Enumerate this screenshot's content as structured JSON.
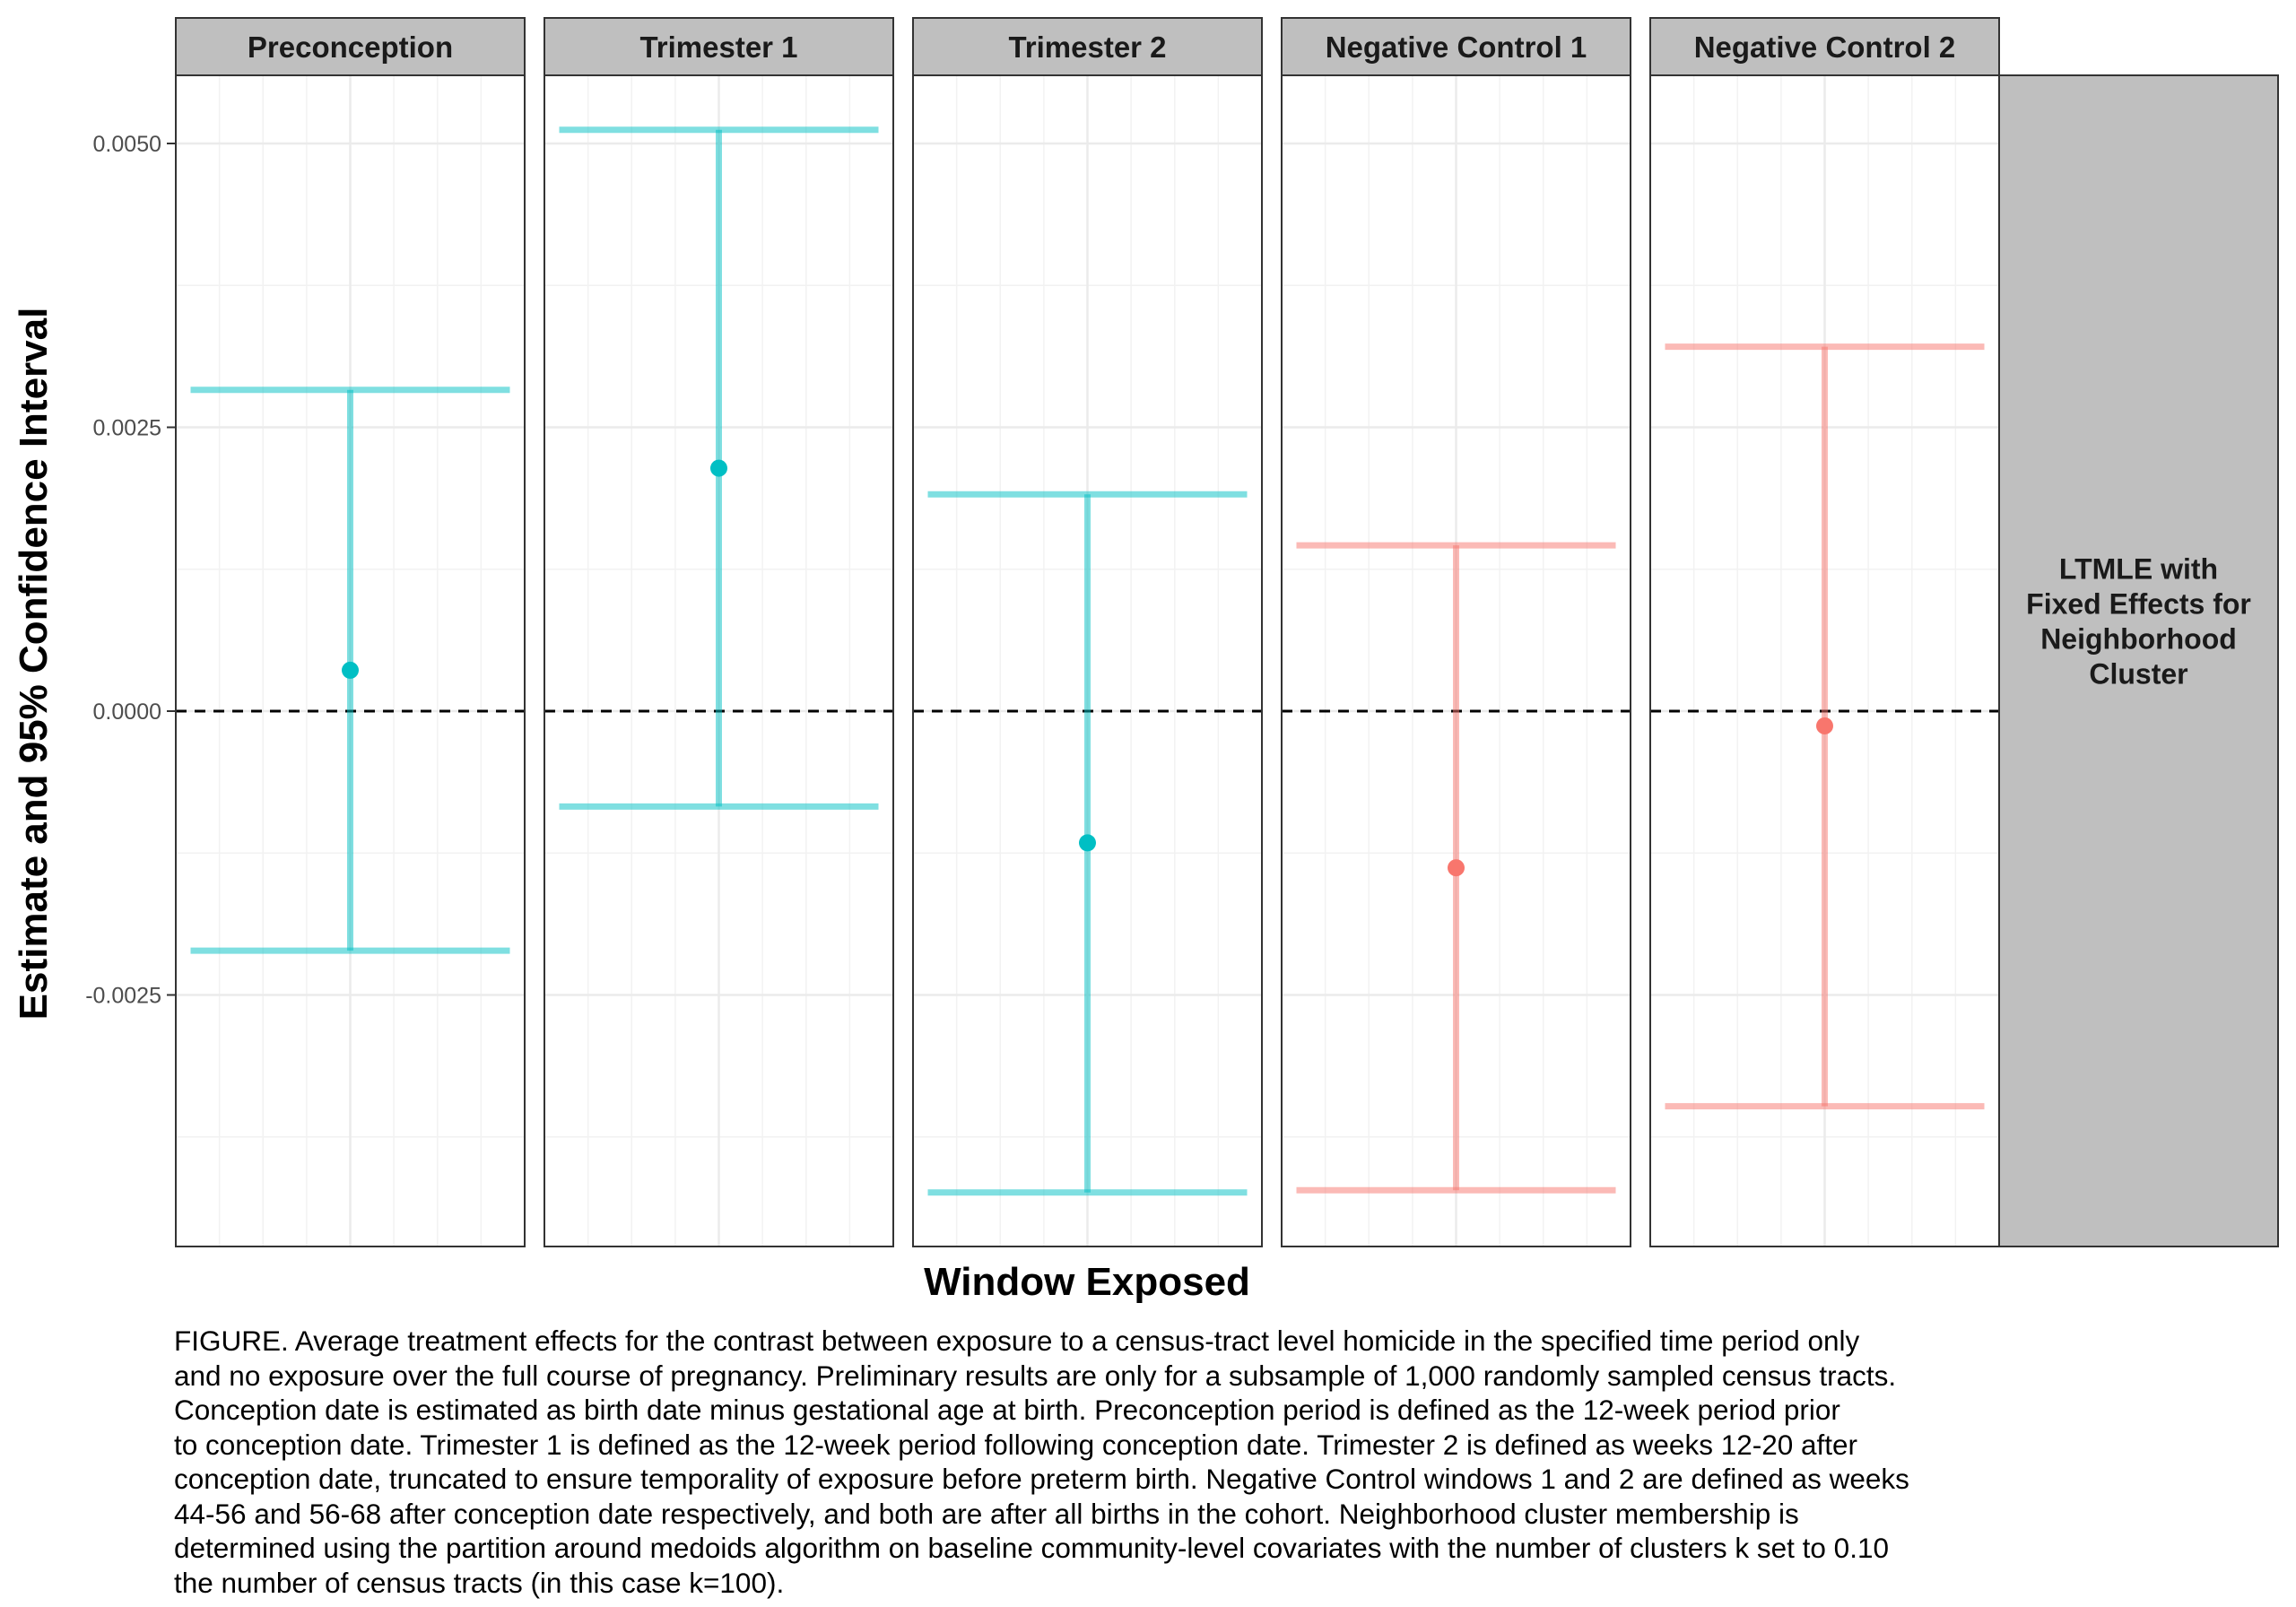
{
  "chart_data": {
    "type": "errorbar",
    "xlabel": "Window Exposed",
    "ylabel": "Estimate and 95% Confidence Interval",
    "ylim": [
      -0.0047,
      0.0056
    ],
    "yticks": [
      -0.0025,
      0.0,
      0.0025,
      0.005
    ],
    "ytick_labels": [
      "-0.0025",
      "0.0000",
      "0.0025",
      "0.0050"
    ],
    "reference_line": 0,
    "grid": true,
    "row_strip": [
      "LTMLE with",
      "Fixed Effects for",
      "Neighborhood",
      "Cluster"
    ],
    "panels": [
      {
        "label": "Preconception",
        "estimate": 0.00036,
        "lower": -0.00211,
        "upper": 0.00283,
        "color": "#00BFC4"
      },
      {
        "label": "Trimester 1",
        "estimate": 0.00214,
        "lower": -0.00084,
        "upper": 0.00512,
        "color": "#00BFC4"
      },
      {
        "label": "Trimester 2",
        "estimate": -0.00116,
        "lower": -0.00424,
        "upper": 0.00191,
        "color": "#00BFC4"
      },
      {
        "label": "Negative Control 1",
        "estimate": -0.00138,
        "lower": -0.00422,
        "upper": 0.00146,
        "color": "#F8766D"
      },
      {
        "label": "Negative Control 2",
        "estimate": -0.00013,
        "lower": -0.00348,
        "upper": 0.00321,
        "color": "#F8766D"
      }
    ]
  },
  "caption": [
    "FIGURE. Average treatment effects for the contrast between exposure to a census-tract level homicide in the specified time period only",
    "and no exposure over the full course of pregnancy. Preliminary results are only for a subsample of 1,000 randomly sampled census tracts.",
    "Conception date is estimated as birth date minus gestational age at birth. Preconception period is defined as the 12-week period prior",
    "to conception date. Trimester 1 is defined as the 12-week period following conception date. Trimester 2 is defined as weeks 12-20 after",
    "conception date, truncated to ensure temporality of exposure before preterm birth. Negative Control windows 1 and 2 are defined as weeks",
    "44-56 and 56-68 after conception date respectively, and both are after all births in the cohort. Neighborhood cluster membership is",
    "determined using the partition around medoids algorithm on baseline community-level covariates with the number of clusters k set to 0.10",
    "the number of census tracts (in this case k=100)."
  ]
}
